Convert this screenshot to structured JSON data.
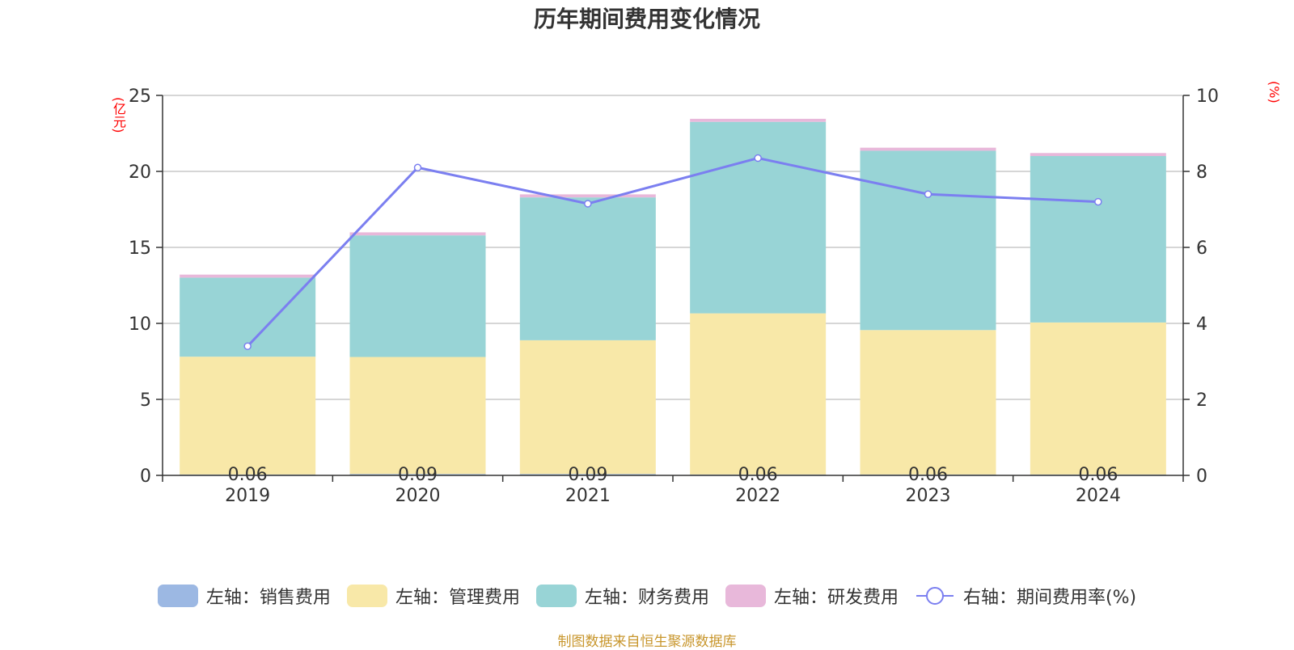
{
  "chart_data": {
    "type": "bar",
    "title": "历年期间费用变化情况",
    "left_axis_unit": "(亿元)",
    "right_axis_unit": "(%)",
    "categories": [
      "2019",
      "2020",
      "2021",
      "2022",
      "2023",
      "2024"
    ],
    "left_ylim": [
      0,
      25
    ],
    "left_yticks": [
      "0",
      "5",
      "10",
      "15",
      "20",
      "25"
    ],
    "right_ylim": [
      0,
      10
    ],
    "right_yticks": [
      "0",
      "2",
      "4",
      "6",
      "8",
      "10"
    ],
    "series": [
      {
        "name": "左轴：销售费用",
        "type": "bar",
        "stack": true,
        "color": "#9cb8e3",
        "values": [
          0.06,
          0.09,
          0.09,
          0.06,
          0.06,
          0.06
        ],
        "data_labels": [
          "0.06",
          "0.09",
          "0.09",
          "0.06",
          "0.06",
          "0.06"
        ]
      },
      {
        "name": "左轴：管理费用",
        "type": "bar",
        "stack": true,
        "color": "#f8e8a8",
        "values": [
          7.75,
          7.7,
          8.8,
          10.6,
          9.5,
          10.0
        ]
      },
      {
        "name": "左轴：财务费用",
        "type": "bar",
        "stack": true,
        "color": "#98d4d6",
        "values": [
          5.2,
          8.0,
          9.4,
          12.6,
          11.8,
          10.95
        ]
      },
      {
        "name": "左轴：研发费用",
        "type": "bar",
        "stack": true,
        "color": "#e8b8da",
        "values": [
          0.2,
          0.2,
          0.2,
          0.2,
          0.2,
          0.2
        ]
      },
      {
        "name": "右轴：期间费用率(%)",
        "type": "line",
        "axis": "right",
        "color": "#7b7ff0",
        "values": [
          3.4,
          8.1,
          7.15,
          8.35,
          7.4,
          7.2
        ]
      }
    ],
    "grid": true,
    "legend_position": "bottom"
  },
  "source_note": "制图数据来自恒生聚源数据库"
}
